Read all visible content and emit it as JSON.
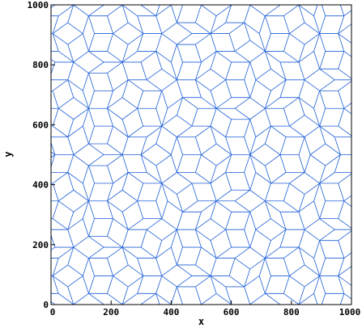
{
  "chart_data": {
    "type": "line",
    "title": "",
    "xlabel": "x",
    "ylabel": "y",
    "xlim": [
      0,
      1000
    ],
    "ylim": [
      0,
      1000
    ],
    "x_ticks": [
      0,
      200,
      400,
      600,
      800,
      1000
    ],
    "y_ticks": [
      0,
      200,
      400,
      600,
      800,
      1000
    ],
    "x_tick_labels": [
      "0",
      "200",
      "400",
      "600",
      "800",
      "1000"
    ],
    "y_tick_labels": [
      "0",
      "200",
      "400",
      "600",
      "800",
      "1000"
    ],
    "grid": false,
    "legend": "none",
    "line_color": "#1f5fd6",
    "pattern": "rhombus tiling (Penrose-like) edge segments spanning the full 0-1000 by 0-1000 domain"
  }
}
